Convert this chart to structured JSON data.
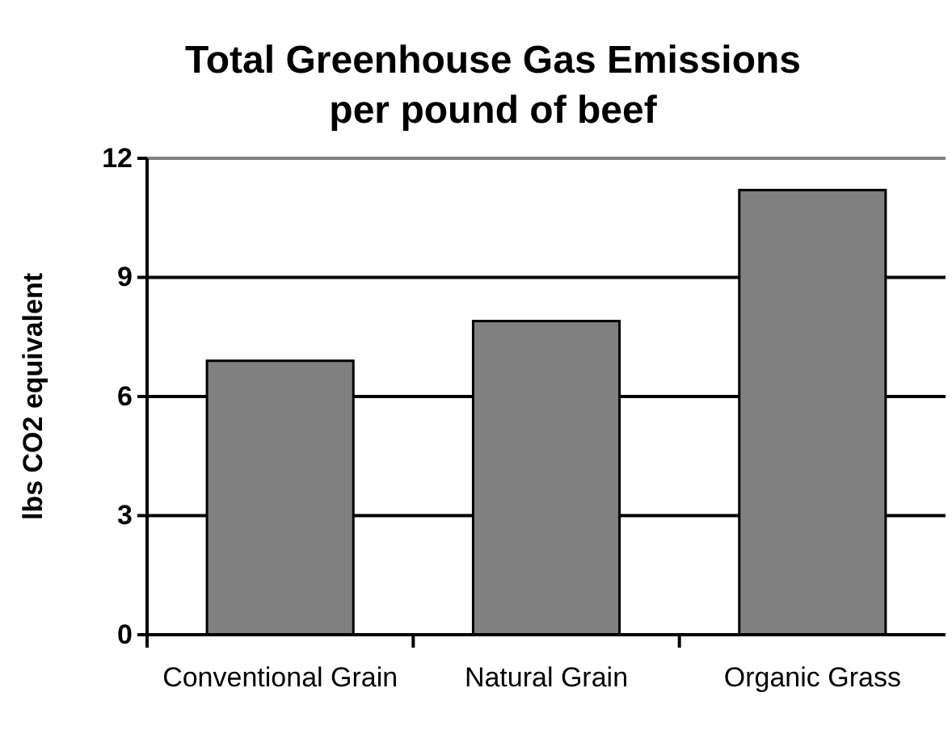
{
  "chart_data": {
    "type": "bar",
    "title": "Total Greenhouse Gas Emissions per pound of beef",
    "ylabel": "lbs CO2 equivalent",
    "categories": [
      "Conventional Grain",
      "Natural Grain",
      "Organic Grass"
    ],
    "values": [
      6.9,
      7.9,
      11.2
    ],
    "color": "#808080",
    "ylim": [
      0,
      12
    ],
    "yticks": [
      0,
      3,
      6,
      9,
      12
    ],
    "grid": "y"
  }
}
